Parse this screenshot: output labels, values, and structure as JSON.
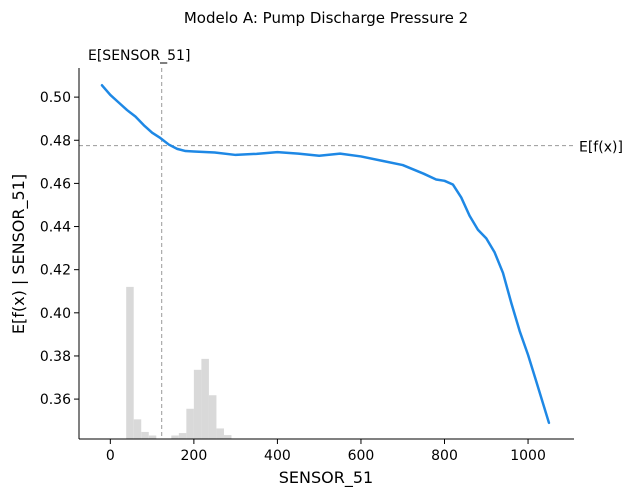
{
  "chart_data": {
    "type": "line",
    "title": "Modelo A: Pump Discharge Pressure 2",
    "xlabel": "SENSOR_51",
    "ylabel": "E[f(x) | SENSOR_51]",
    "xlim": [
      -75,
      1110
    ],
    "ylim": [
      0.3415,
      0.5135
    ],
    "x_ticks": [
      0,
      200,
      400,
      600,
      800,
      1000
    ],
    "y_ticks": [
      0.36,
      0.38,
      0.4,
      0.42,
      0.44,
      0.46,
      0.48,
      0.5
    ],
    "x_tick_labels": [
      "0",
      "200",
      "400",
      "600",
      "800",
      "1000"
    ],
    "y_tick_labels": [
      "0.36",
      "0.38",
      "0.40",
      "0.42",
      "0.44",
      "0.46",
      "0.48",
      "0.50"
    ],
    "line_color": "#1e88e5",
    "hist_color": "#d9d9d9",
    "ref_line_color": "#999999",
    "reference_lines": {
      "expected_value": {
        "label": "E[f(x)]",
        "y": 0.4775
      },
      "feature_mean": {
        "label": "E[SENSOR_51]",
        "x": 123
      }
    },
    "series": [
      {
        "x": [
          -20,
          0,
          20,
          40,
          60,
          80,
          100,
          120,
          140,
          160,
          180,
          200,
          250,
          300,
          350,
          400,
          450,
          500,
          550,
          600,
          650,
          700,
          750,
          780,
          800,
          820,
          840,
          860,
          880,
          900,
          920,
          940,
          960,
          980,
          1000,
          1020,
          1050
        ],
        "y": [
          0.5055,
          0.501,
          0.4975,
          0.494,
          0.491,
          0.487,
          0.4835,
          0.481,
          0.478,
          0.476,
          0.475,
          0.4748,
          0.4743,
          0.4732,
          0.4737,
          0.4745,
          0.4738,
          0.4728,
          0.4738,
          0.4725,
          0.4705,
          0.4685,
          0.4645,
          0.4618,
          0.4612,
          0.4595,
          0.4535,
          0.445,
          0.4385,
          0.4345,
          0.428,
          0.4185,
          0.4045,
          0.3915,
          0.3805,
          0.368,
          0.349
        ]
      }
    ],
    "histogram": {
      "bin_start": 20,
      "bin_width": 18,
      "relative_heights": [
        0.0,
        0.41,
        0.053,
        0.019,
        0.0095,
        0.0,
        0.0,
        0.0095,
        0.016,
        0.0815,
        0.1865,
        0.216,
        0.118,
        0.0285,
        0.0105,
        0.0
      ]
    }
  }
}
